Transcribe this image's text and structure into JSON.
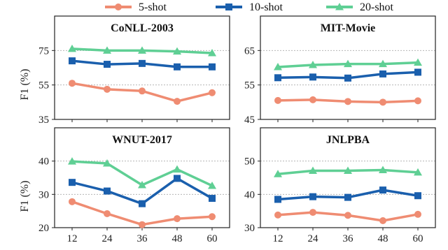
{
  "legend": [
    {
      "name": "5-shot",
      "color": "#ef8c72",
      "marker": "circle"
    },
    {
      "name": "10-shot",
      "color": "#1a5fad",
      "marker": "square"
    },
    {
      "name": "20-shot",
      "color": "#5fcf94",
      "marker": "triangle"
    }
  ],
  "ylabel": "F1 (%)",
  "chart_data": [
    {
      "type": "line",
      "title": "CoNLL-2003",
      "x": [
        12,
        24,
        36,
        48,
        60
      ],
      "ylim": [
        35,
        95
      ],
      "yticks": [
        35,
        55,
        75
      ],
      "grid": true,
      "series": [
        {
          "name": "5-shot",
          "values": [
            56,
            52.5,
            51.5,
            45.5,
            50.5
          ]
        },
        {
          "name": "10-shot",
          "values": [
            69,
            67,
            67.5,
            65.5,
            65.5
          ]
        },
        {
          "name": "20-shot",
          "values": [
            76,
            75,
            75,
            74.5,
            73.5
          ]
        }
      ]
    },
    {
      "type": "line",
      "title": "MIT-Movie",
      "x": [
        12,
        24,
        36,
        48,
        60
      ],
      "ylim": [
        45,
        75
      ],
      "yticks": [
        45,
        55,
        65
      ],
      "grid": true,
      "series": [
        {
          "name": "5-shot",
          "values": [
            50.5,
            50.7,
            50.2,
            50,
            50.4
          ]
        },
        {
          "name": "10-shot",
          "values": [
            57.1,
            57.3,
            57,
            58.2,
            58.7
          ]
        },
        {
          "name": "20-shot",
          "values": [
            60.2,
            60.8,
            61.1,
            61.1,
            61.5
          ]
        }
      ]
    },
    {
      "type": "line",
      "title": "WNUT-2017",
      "x": [
        12,
        24,
        36,
        48,
        60
      ],
      "ylim": [
        20,
        50
      ],
      "yticks": [
        20,
        30,
        40
      ],
      "grid": true,
      "series": [
        {
          "name": "5-shot",
          "values": [
            27.8,
            24.2,
            20.9,
            22.7,
            23.3
          ]
        },
        {
          "name": "10-shot",
          "values": [
            33.6,
            31,
            27.2,
            34.8,
            28.8
          ]
        },
        {
          "name": "20-shot",
          "values": [
            39.9,
            39.3,
            32.8,
            37.5,
            32.6
          ]
        }
      ]
    },
    {
      "type": "line",
      "title": "JNLPBA",
      "x": [
        12,
        24,
        36,
        48,
        60
      ],
      "ylim": [
        30,
        60
      ],
      "yticks": [
        30,
        40,
        50
      ],
      "grid": true,
      "series": [
        {
          "name": "5-shot",
          "values": [
            33.8,
            34.6,
            33.7,
            32.1,
            34
          ]
        },
        {
          "name": "10-shot",
          "values": [
            38.5,
            39.3,
            39.1,
            41.3,
            39.6
          ]
        },
        {
          "name": "20-shot",
          "values": [
            46.1,
            47.1,
            47.1,
            47.3,
            46.6
          ]
        }
      ]
    }
  ]
}
